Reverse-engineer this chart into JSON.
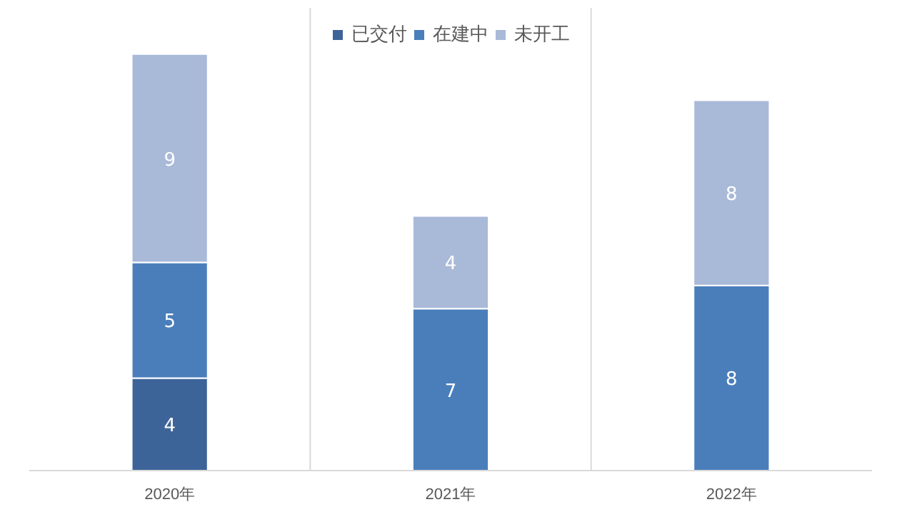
{
  "chart_data": {
    "type": "bar",
    "stacked": true,
    "categories": [
      "2020年",
      "2021年",
      "2022年"
    ],
    "series": [
      {
        "name": "已交付",
        "color": "#3d6499",
        "values": [
          4,
          null,
          null
        ]
      },
      {
        "name": "在建中",
        "color": "#4a7ebb",
        "values": [
          5,
          7,
          8
        ]
      },
      {
        "name": "未开工",
        "color": "#a9b9d8",
        "values": [
          9,
          4,
          8
        ]
      }
    ],
    "ylim": [
      0,
      20
    ],
    "data_labels": true,
    "legend": "top",
    "grid": "x",
    "tick_labels": "x"
  }
}
